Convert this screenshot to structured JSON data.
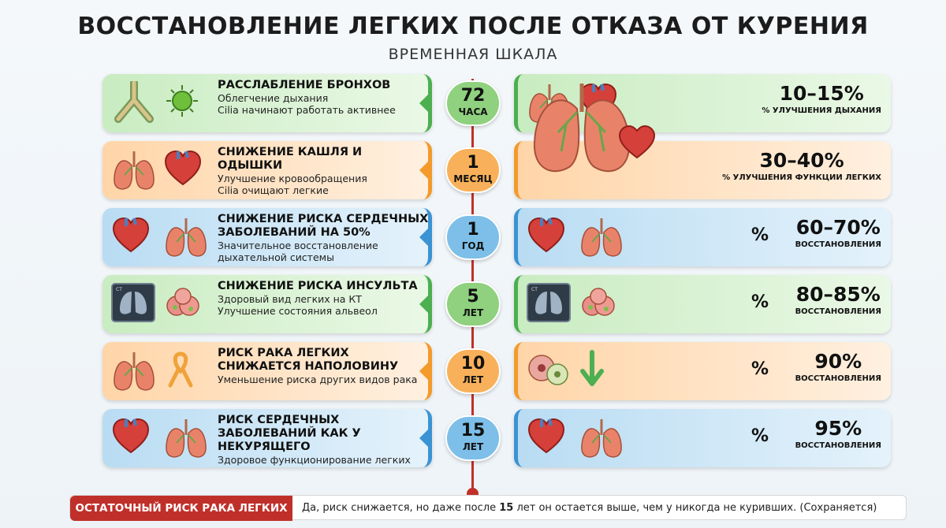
{
  "title": "ВОССТАНОВЛЕНИЕ ЛЕГКИХ ПОСЛЕ ОТКАЗА ОТ КУРЕНИЯ",
  "subtitle": "ВРЕМЕННАЯ ШКАЛА",
  "colors": {
    "green": "#4caf50",
    "orange": "#f39a2b",
    "blue": "#3a93d3",
    "axis_red": "#c0302a"
  },
  "rows": [
    {
      "theme": "green",
      "icons": [
        "bronchi-icon",
        "bacteria-icon"
      ],
      "heading": "РАССЛАБЛЕНИЕ БРОНХОВ",
      "lines": [
        "Облегчение дыхания",
        "Cilia начинают работать активнее"
      ],
      "badge_num": "72",
      "badge_unit": "ЧАСА",
      "right_icons": [
        "lungs-icon",
        "heart-icon"
      ],
      "show_pct_sign": false,
      "pct_value": "10–15%",
      "pct_label": "% УЛУЧШЕНИЯ ДЫХАНИЯ"
    },
    {
      "theme": "orange",
      "icons": [
        "lungs-icon",
        "heart-icon"
      ],
      "heading": "СНИЖЕНИЕ КАШЛЯ И ОДЫШКИ",
      "lines": [
        "Улучшение кровообращения",
        "Cilia очищают легкие"
      ],
      "badge_num": "1",
      "badge_unit": "МЕСЯЦ",
      "right_icons": [],
      "show_pct_sign": false,
      "pct_value": "30–40%",
      "pct_label": "% УЛУЧШЕНИЯ ФУНКЦИИ ЛЕГКИХ"
    },
    {
      "theme": "blue",
      "icons": [
        "heart-icon",
        "lungs-icon"
      ],
      "heading": "СНИЖЕНИЕ РИСКА СЕРДЕЧНЫХ ЗАБОЛЕВАНИЙ НА 50%",
      "lines": [
        "Значительное восстановление",
        "дыхательной системы"
      ],
      "badge_num": "1",
      "badge_unit": "ГОД",
      "right_icons": [
        "heart-icon",
        "lungs-icon"
      ],
      "show_pct_sign": true,
      "pct_sign": "%",
      "pct_value": "60–70%",
      "pct_label": "ВОССТАНОВЛЕНИЯ"
    },
    {
      "theme": "green",
      "icons": [
        "ct-scan-icon",
        "alveoli-icon"
      ],
      "heading": "СНИЖЕНИЕ РИСКА ИНСУЛЬТА",
      "lines": [
        "Здоровый вид легких на КТ",
        "Улучшение состояния альвеол"
      ],
      "badge_num": "5",
      "badge_unit": "ЛЕТ",
      "right_icons": [
        "ct-scan-icon",
        "alveoli-icon"
      ],
      "show_pct_sign": true,
      "pct_sign": "%",
      "pct_value": "80–85%",
      "pct_label": "ВОССТАНОВЛЕНИЯ"
    },
    {
      "theme": "orange",
      "icons": [
        "lungs-icon",
        "ribbon-icon"
      ],
      "heading": "РИСК РАКА ЛЕГКИХ СНИЖАЕТСЯ НАПОЛОВИНУ",
      "lines": [
        "Уменьшение риска других видов рака"
      ],
      "badge_num": "10",
      "badge_unit": "ЛЕТ",
      "right_icons": [
        "cells-icon",
        "arrow-down-icon"
      ],
      "show_pct_sign": true,
      "pct_sign": "%",
      "pct_value": "90%",
      "pct_label": "ВОССТАНОВЛЕНИЯ"
    },
    {
      "theme": "blue",
      "icons": [
        "heart-icon",
        "lungs-icon"
      ],
      "heading": "РИСК СЕРДЕЧНЫХ ЗАБОЛЕВАНИЙ КАК У НЕКУРЯЩЕГО",
      "lines": [
        "Здоровое функционирование легких"
      ],
      "badge_num": "15",
      "badge_unit": "ЛЕТ",
      "right_icons": [
        "heart-icon",
        "lungs-icon"
      ],
      "show_pct_sign": true,
      "pct_sign": "%",
      "pct_value": "95%",
      "pct_label": "ВОССТАНОВЛЕНИЯ"
    }
  ],
  "footer": {
    "label": "ОСТАТОЧНЫЙ РИСК РАКА ЛЕГКИХ",
    "text_before": "Да, риск снижается, но даже после ",
    "text_bold": "15",
    "text_after": " лет он остается выше, чем у никогда не куривших. (Сохраняется)"
  }
}
